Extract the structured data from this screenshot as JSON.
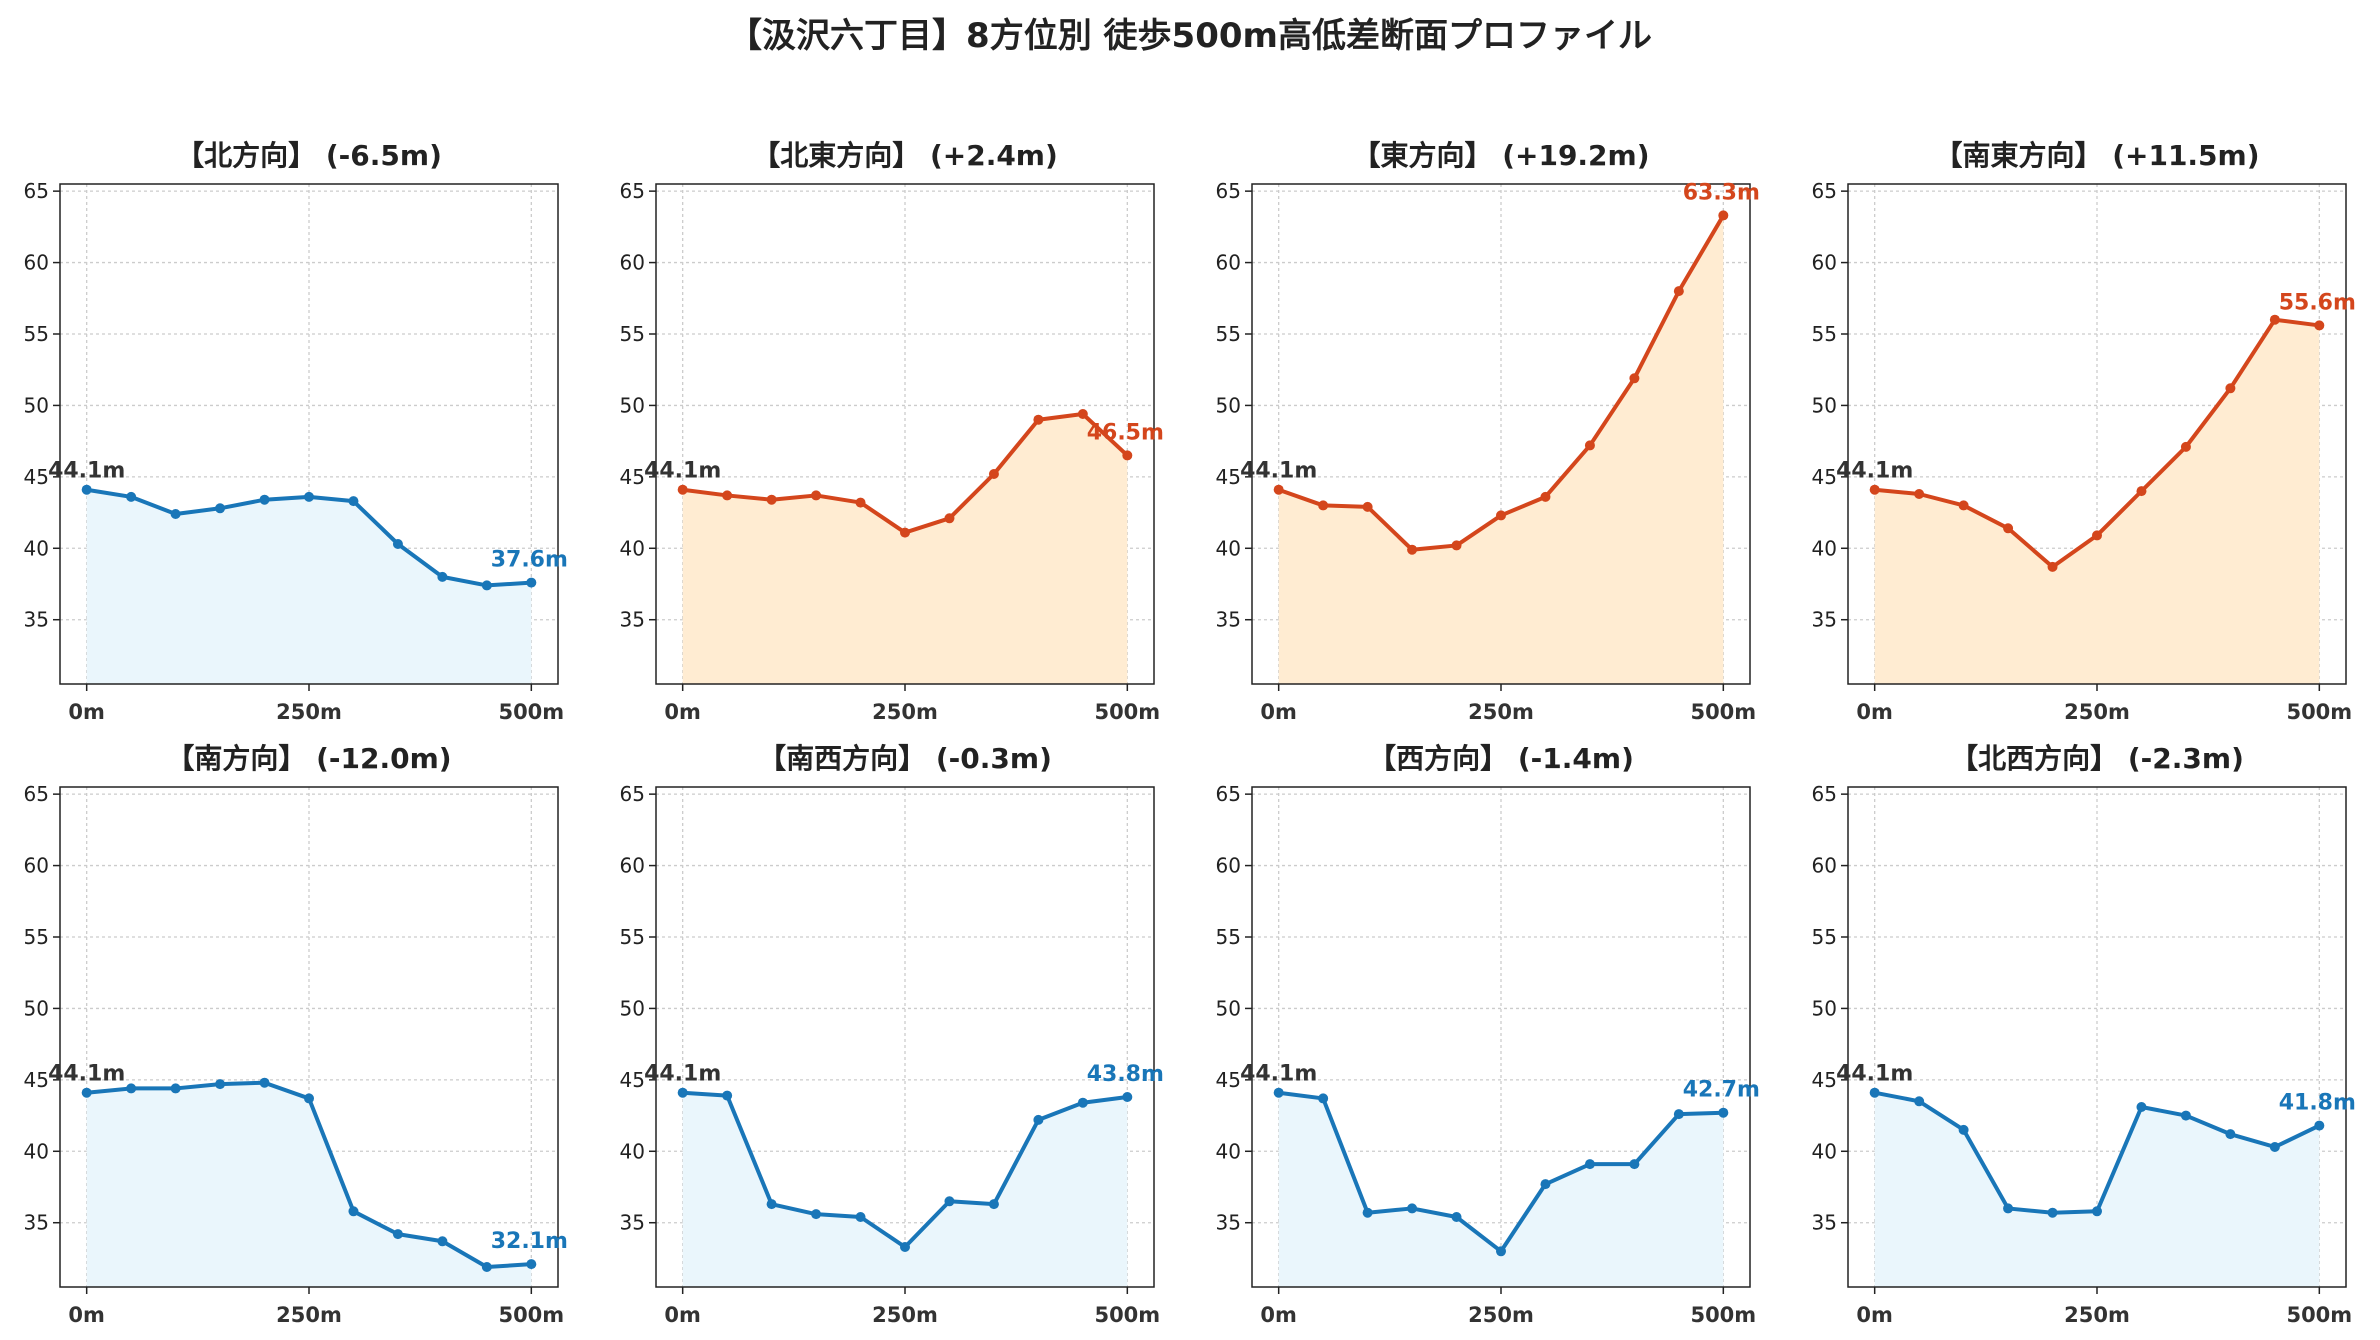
{
  "title": "【汲沢六丁目】8方位別 徒歩500m高低差断面プロファイル",
  "colors": {
    "up": "#d4461c",
    "up_fill": "#ffecd2",
    "down": "#1976b8",
    "down_fill": "#eaf6fc",
    "start_label": "#333333"
  },
  "chart_data": [
    {
      "type": "area",
      "title": "【北方向】 (-6.5m)",
      "trend": "down",
      "x": [
        0,
        50,
        100,
        150,
        200,
        250,
        300,
        350,
        400,
        450,
        500
      ],
      "y": [
        44.1,
        43.6,
        42.4,
        42.8,
        43.4,
        43.6,
        43.3,
        40.3,
        38.0,
        37.4,
        37.6
      ],
      "start_label": "44.1m",
      "end_label": "37.6m",
      "xticks": [
        "0m",
        "250m",
        "500m"
      ],
      "yticks": [
        35,
        40,
        45,
        50,
        55,
        60,
        65
      ],
      "ylim": [
        30.5,
        65.5
      ],
      "xlim": [
        -30,
        530
      ],
      "grid": true
    },
    {
      "type": "area",
      "title": "【北東方向】 (+2.4m)",
      "trend": "up",
      "x": [
        0,
        50,
        100,
        150,
        200,
        250,
        300,
        350,
        400,
        450,
        500
      ],
      "y": [
        44.1,
        43.7,
        43.4,
        43.7,
        43.2,
        41.1,
        42.1,
        45.2,
        49.0,
        49.4,
        46.5
      ],
      "start_label": "44.1m",
      "end_label": "46.5m",
      "xticks": [
        "0m",
        "250m",
        "500m"
      ],
      "yticks": [
        35,
        40,
        45,
        50,
        55,
        60,
        65
      ],
      "ylim": [
        30.5,
        65.5
      ],
      "xlim": [
        -30,
        530
      ],
      "grid": true
    },
    {
      "type": "area",
      "title": "【東方向】 (+19.2m)",
      "trend": "up",
      "x": [
        0,
        50,
        100,
        150,
        200,
        250,
        300,
        350,
        400,
        450,
        500
      ],
      "y": [
        44.1,
        43.0,
        42.9,
        39.9,
        40.2,
        42.3,
        43.6,
        47.2,
        51.9,
        58.0,
        63.3
      ],
      "start_label": "44.1m",
      "end_label": "63.3m",
      "xticks": [
        "0m",
        "250m",
        "500m"
      ],
      "yticks": [
        35,
        40,
        45,
        50,
        55,
        60,
        65
      ],
      "ylim": [
        30.5,
        65.5
      ],
      "xlim": [
        -30,
        530
      ],
      "grid": true
    },
    {
      "type": "area",
      "title": "【南東方向】 (+11.5m)",
      "trend": "up",
      "x": [
        0,
        50,
        100,
        150,
        200,
        250,
        300,
        350,
        400,
        450,
        500
      ],
      "y": [
        44.1,
        43.8,
        43.0,
        41.4,
        38.7,
        40.9,
        44.0,
        47.1,
        51.2,
        56.0,
        55.6
      ],
      "start_label": "44.1m",
      "end_label": "55.6m",
      "xticks": [
        "0m",
        "250m",
        "500m"
      ],
      "yticks": [
        35,
        40,
        45,
        50,
        55,
        60,
        65
      ],
      "ylim": [
        30.5,
        65.5
      ],
      "xlim": [
        -30,
        530
      ],
      "grid": true
    },
    {
      "type": "area",
      "title": "【南方向】 (-12.0m)",
      "trend": "down",
      "x": [
        0,
        50,
        100,
        150,
        200,
        250,
        300,
        350,
        400,
        450,
        500
      ],
      "y": [
        44.1,
        44.4,
        44.4,
        44.7,
        44.8,
        43.7,
        35.8,
        34.2,
        33.7,
        31.9,
        32.1
      ],
      "start_label": "44.1m",
      "end_label": "32.1m",
      "xticks": [
        "0m",
        "250m",
        "500m"
      ],
      "yticks": [
        35,
        40,
        45,
        50,
        55,
        60,
        65
      ],
      "ylim": [
        30.5,
        65.5
      ],
      "xlim": [
        -30,
        530
      ],
      "grid": true
    },
    {
      "type": "area",
      "title": "【南西方向】 (-0.3m)",
      "trend": "down",
      "x": [
        0,
        50,
        100,
        150,
        200,
        250,
        300,
        350,
        400,
        450,
        500
      ],
      "y": [
        44.1,
        43.9,
        36.3,
        35.6,
        35.4,
        33.3,
        36.5,
        36.3,
        42.2,
        43.4,
        43.8
      ],
      "start_label": "44.1m",
      "end_label": "43.8m",
      "xticks": [
        "0m",
        "250m",
        "500m"
      ],
      "yticks": [
        35,
        40,
        45,
        50,
        55,
        60,
        65
      ],
      "ylim": [
        30.5,
        65.5
      ],
      "xlim": [
        -30,
        530
      ],
      "grid": true
    },
    {
      "type": "area",
      "title": "【西方向】 (-1.4m)",
      "trend": "down",
      "x": [
        0,
        50,
        100,
        150,
        200,
        250,
        300,
        350,
        400,
        450,
        500
      ],
      "y": [
        44.1,
        43.7,
        35.7,
        36.0,
        35.4,
        33.0,
        37.7,
        39.1,
        39.1,
        42.6,
        42.7
      ],
      "start_label": "44.1m",
      "end_label": "42.7m",
      "xticks": [
        "0m",
        "250m",
        "500m"
      ],
      "yticks": [
        35,
        40,
        45,
        50,
        55,
        60,
        65
      ],
      "ylim": [
        30.5,
        65.5
      ],
      "xlim": [
        -30,
        530
      ],
      "grid": true
    },
    {
      "type": "area",
      "title": "【北西方向】 (-2.3m)",
      "trend": "down",
      "x": [
        0,
        50,
        100,
        150,
        200,
        250,
        300,
        350,
        400,
        450,
        500
      ],
      "y": [
        44.1,
        43.5,
        41.5,
        36.0,
        35.7,
        35.8,
        43.1,
        42.5,
        41.2,
        40.3,
        41.8
      ],
      "start_label": "44.1m",
      "end_label": "41.8m",
      "xticks": [
        "0m",
        "250m",
        "500m"
      ],
      "yticks": [
        35,
        40,
        45,
        50,
        55,
        60,
        65
      ],
      "ylim": [
        30.5,
        65.5
      ],
      "xlim": [
        -30,
        530
      ],
      "grid": true
    }
  ]
}
